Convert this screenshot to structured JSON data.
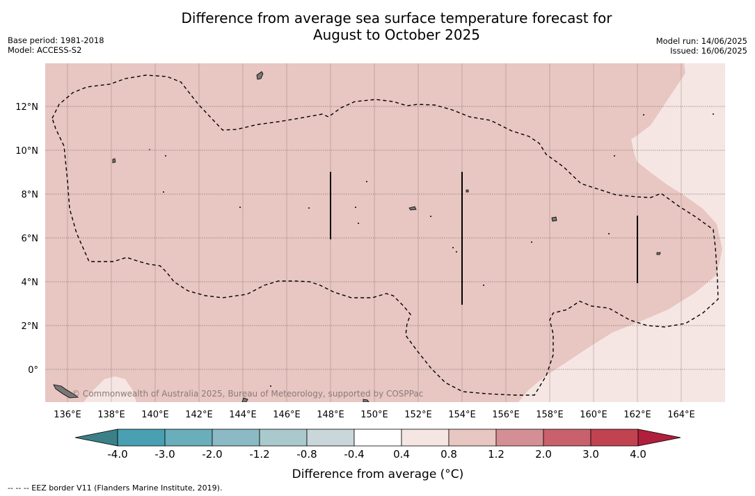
{
  "title_line1": "Difference from average sea surface temperature forecast for",
  "title_line2": "August to October 2025",
  "base_period": "Base period: 1981-2018",
  "model": "Model: ACCESS-S2",
  "model_run": "Model run: 14/06/2025",
  "issued": "Issued: 16/06/2025",
  "copyright": "© Commonwealth of Australia 2025, Bureau of Meteorology, supported by COSPPac",
  "map": {
    "lon_ticks": [
      "136°E",
      "138°E",
      "140°E",
      "142°E",
      "144°E",
      "146°E",
      "148°E",
      "150°E",
      "152°E",
      "154°E",
      "156°E",
      "158°E",
      "160°E",
      "162°E",
      "164°E"
    ],
    "lat_ticks": [
      "12°N",
      "10°N",
      "8°N",
      "6°N",
      "4°N",
      "2°N",
      "0°"
    ],
    "ocean_color": "#e8c6c1",
    "light_color": "#f5e6e3"
  },
  "colorbar": {
    "title": "Difference from average (°C)",
    "labels": [
      "-4.0",
      "-3.0",
      "-2.0",
      "-1.2",
      "-0.8",
      "-0.4",
      "0.4",
      "0.8",
      "1.2",
      "2.0",
      "3.0",
      "4.0"
    ],
    "colors": [
      "#48a0b2",
      "#6aadbb",
      "#8bbac4",
      "#a9c9cd",
      "#c9d6da",
      "#ffffff",
      "#f5e6e3",
      "#e8c6c1",
      "#d48f95",
      "#c8616b",
      "#c0434f"
    ],
    "under_color": "#3c8087",
    "over_color": "#b01f3d"
  },
  "footer": "-- -- -- EEZ border V11 (Flanders Marine Institute, 2019)."
}
